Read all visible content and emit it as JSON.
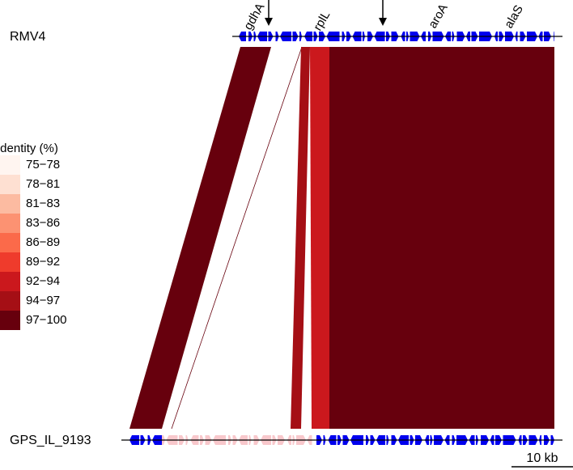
{
  "tracks": [
    {
      "name": "RMV4"
    },
    {
      "name": "GPS_IL_9193"
    }
  ],
  "gene_labels": [
    "gdhA",
    "rplL",
    "aroA",
    "alaS"
  ],
  "legend": {
    "title": "Identity (%)",
    "items": [
      {
        "label": "75−78",
        "color": "#fff5f0"
      },
      {
        "label": "78−81",
        "color": "#fee0d2"
      },
      {
        "label": "81−83",
        "color": "#fcbba1"
      },
      {
        "label": "83−86",
        "color": "#fc9272"
      },
      {
        "label": "86−89",
        "color": "#fb6a4a"
      },
      {
        "label": "89−92",
        "color": "#ef3b2c"
      },
      {
        "label": "92−94",
        "color": "#cb181d"
      },
      {
        "label": "94−97",
        "color": "#a50f15"
      },
      {
        "label": "97−100",
        "color": "#67000d"
      }
    ]
  },
  "scale_bar": "10 kb"
}
